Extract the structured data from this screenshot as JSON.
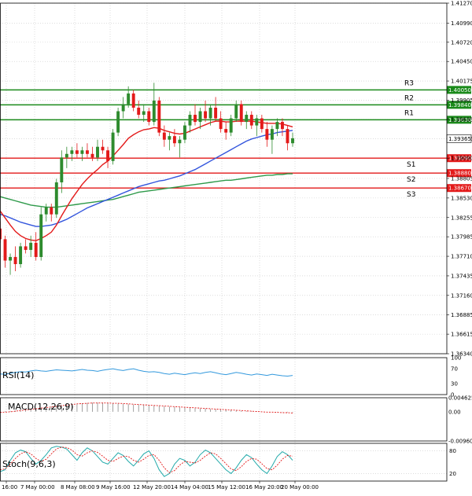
{
  "chart_data": {
    "type": "candlestick",
    "instrument_note": "",
    "colors": {
      "bull": "#2e8b2e",
      "bear": "#e31a1a",
      "ma_fast": "#e31a1a",
      "ma_mid": "#3355dd",
      "ma_slow": "#2e9a4a",
      "resistance": "#1a8a1a",
      "support": "#e31a1a",
      "grid": "#c8c8c8",
      "rsi": "#3399dd",
      "macd_hist": "#888888",
      "macd_signal": "#e31a1a",
      "stoch_k": "#22aaaa",
      "stoch_d": "#e31a1a"
    },
    "price_axis": {
      "min": 1.3634,
      "max": 1.4127,
      "ticks": [
        "1.41270",
        "1.40990",
        "1.40720",
        "1.40450",
        "1.40175",
        "1.39905",
        "1.39635",
        "1.39365",
        "1.39090",
        "1.38805",
        "1.38530",
        "1.38255",
        "1.37985",
        "1.37710",
        "1.37435",
        "1.37160",
        "1.36885",
        "1.36615",
        "1.36340"
      ]
    },
    "current_price": {
      "value": 1.39365,
      "label": "1.39365"
    },
    "levels": [
      {
        "name": "R3",
        "value": 1.4005,
        "label": "1.40050",
        "kind": "resistance"
      },
      {
        "name": "R2",
        "value": 1.3984,
        "label": "1.39840",
        "kind": "resistance"
      },
      {
        "name": "R1",
        "value": 1.3963,
        "label": "1.39630",
        "kind": "resistance"
      },
      {
        "name": "S1",
        "value": 1.3909,
        "label": "1.39090",
        "kind": "support"
      },
      {
        "name": "S2",
        "value": 1.3888,
        "label": "1.38880",
        "kind": "support"
      },
      {
        "name": "S3",
        "value": 1.3867,
        "label": "1.38670",
        "kind": "support"
      }
    ],
    "x_labels": [
      "16:00",
      "7 May 00:00",
      "8 May 08:00",
      "9 May 16:00",
      "12 May 20:00",
      "14 May 04:00",
      "15 May 12:00",
      "16 May 20:00",
      "20 May 00:00"
    ],
    "candles": [
      [
        1.381,
        1.382,
        1.379,
        1.3795
      ],
      [
        1.3795,
        1.38,
        1.3755,
        1.3765
      ],
      [
        1.3765,
        1.3775,
        1.3745,
        1.377
      ],
      [
        1.377,
        1.3785,
        1.375,
        1.376
      ],
      [
        1.376,
        1.379,
        1.3755,
        1.3785
      ],
      [
        1.3785,
        1.3795,
        1.3775,
        1.378
      ],
      [
        1.378,
        1.38,
        1.377,
        1.379
      ],
      [
        1.379,
        1.3805,
        1.3765,
        1.377
      ],
      [
        1.377,
        1.384,
        1.3765,
        1.383
      ],
      [
        1.383,
        1.3845,
        1.382,
        1.384
      ],
      [
        1.384,
        1.3845,
        1.382,
        1.383
      ],
      [
        1.383,
        1.388,
        1.3825,
        1.3875
      ],
      [
        1.3875,
        1.392,
        1.386,
        1.391
      ],
      [
        1.391,
        1.3925,
        1.3895,
        1.3915
      ],
      [
        1.3915,
        1.3925,
        1.3905,
        1.392
      ],
      [
        1.392,
        1.393,
        1.391,
        1.3915
      ],
      [
        1.3915,
        1.3925,
        1.3905,
        1.392
      ],
      [
        1.392,
        1.393,
        1.391,
        1.3915
      ],
      [
        1.3915,
        1.3925,
        1.3905,
        1.391
      ],
      [
        1.391,
        1.3935,
        1.3905,
        1.3925
      ],
      [
        1.3925,
        1.3935,
        1.3915,
        1.392
      ],
      [
        1.392,
        1.3925,
        1.3895,
        1.3905
      ],
      [
        1.3905,
        1.395,
        1.39,
        1.3945
      ],
      [
        1.3945,
        1.398,
        1.394,
        1.3975
      ],
      [
        1.3975,
        1.3995,
        1.3965,
        1.3985
      ],
      [
        1.3985,
        1.401,
        1.398,
        1.4
      ],
      [
        1.4,
        1.4005,
        1.3975,
        1.398
      ],
      [
        1.398,
        1.399,
        1.3965,
        1.397
      ],
      [
        1.397,
        1.3985,
        1.396,
        1.3975
      ],
      [
        1.3975,
        1.398,
        1.3955,
        1.396
      ],
      [
        1.396,
        1.4015,
        1.3955,
        1.399
      ],
      [
        1.399,
        1.3995,
        1.394,
        1.3945
      ],
      [
        1.3945,
        1.3955,
        1.3925,
        1.3935
      ],
      [
        1.3935,
        1.3945,
        1.392,
        1.394
      ],
      [
        1.394,
        1.395,
        1.3925,
        1.393
      ],
      [
        1.393,
        1.394,
        1.391,
        1.3935
      ],
      [
        1.3935,
        1.396,
        1.393,
        1.3955
      ],
      [
        1.3955,
        1.3975,
        1.3945,
        1.397
      ],
      [
        1.397,
        1.3985,
        1.3955,
        1.396
      ],
      [
        1.396,
        1.398,
        1.395,
        1.3975
      ],
      [
        1.3975,
        1.399,
        1.396,
        1.3965
      ],
      [
        1.3965,
        1.3985,
        1.3955,
        1.398
      ],
      [
        1.398,
        1.3995,
        1.396,
        1.3965
      ],
      [
        1.3965,
        1.3975,
        1.3945,
        1.395
      ],
      [
        1.395,
        1.396,
        1.3935,
        1.3945
      ],
      [
        1.3945,
        1.397,
        1.394,
        1.3965
      ],
      [
        1.3965,
        1.399,
        1.396,
        1.3985
      ],
      [
        1.3985,
        1.399,
        1.3955,
        1.396
      ],
      [
        1.396,
        1.3975,
        1.395,
        1.397
      ],
      [
        1.397,
        1.3975,
        1.395,
        1.3955
      ],
      [
        1.3955,
        1.397,
        1.394,
        1.3965
      ],
      [
        1.3965,
        1.397,
        1.3945,
        1.395
      ],
      [
        1.395,
        1.396,
        1.3925,
        1.3935
      ],
      [
        1.3935,
        1.3955,
        1.3915,
        1.395
      ],
      [
        1.395,
        1.3965,
        1.394,
        1.396
      ],
      [
        1.396,
        1.3965,
        1.394,
        1.395
      ],
      [
        1.395,
        1.3955,
        1.392,
        1.393
      ],
      [
        1.393,
        1.3945,
        1.3925,
        1.3937
      ]
    ],
    "ma_fast": [
      1.3835,
      1.3825,
      1.3815,
      1.3806,
      1.38,
      1.3796,
      1.3794,
      1.3793,
      1.3796,
      1.38,
      1.3805,
      1.3815,
      1.3828,
      1.384,
      1.3852,
      1.3862,
      1.3872,
      1.388,
      1.3887,
      1.3893,
      1.39,
      1.3905,
      1.3912,
      1.392,
      1.3928,
      1.3937,
      1.3942,
      1.3946,
      1.3949,
      1.395,
      1.3952,
      1.3951,
      1.3948,
      1.3946,
      1.3944,
      1.3943,
      1.3944,
      1.3947,
      1.395,
      1.3953,
      1.3956,
      1.3959,
      1.3961,
      1.3961,
      1.396,
      1.396,
      1.3961,
      1.3961,
      1.3961,
      1.3961,
      1.396,
      1.3959,
      1.3958,
      1.3958,
      1.3958,
      1.3957,
      1.3955,
      1.3953
    ],
    "ma_mid": [
      1.383,
      1.3828,
      1.3825,
      1.3822,
      1.3819,
      1.3817,
      1.3815,
      1.3813,
      1.3813,
      1.3814,
      1.3815,
      1.3817,
      1.382,
      1.3823,
      1.3827,
      1.3831,
      1.3835,
      1.3839,
      1.3842,
      1.3845,
      1.3848,
      1.3851,
      1.3854,
      1.3857,
      1.386,
      1.3863,
      1.3866,
      1.3869,
      1.3871,
      1.3873,
      1.3875,
      1.3877,
      1.3878,
      1.388,
      1.3882,
      1.3884,
      1.3887,
      1.389,
      1.3893,
      1.3897,
      1.3901,
      1.3905,
      1.3909,
      1.3913,
      1.3917,
      1.3921,
      1.3925,
      1.3929,
      1.3933,
      1.3936,
      1.3938,
      1.394,
      1.3942,
      1.3943,
      1.3945,
      1.3946,
      1.3947,
      1.3948
    ],
    "ma_slow": [
      1.3855,
      1.3853,
      1.3851,
      1.3849,
      1.3847,
      1.3845,
      1.3843,
      1.3842,
      1.3841,
      1.384,
      1.384,
      1.384,
      1.3841,
      1.3842,
      1.3843,
      1.3844,
      1.3845,
      1.3846,
      1.3847,
      1.3848,
      1.3849,
      1.385,
      1.3851,
      1.3853,
      1.3855,
      1.3857,
      1.3859,
      1.3861,
      1.3862,
      1.3863,
      1.3864,
      1.3865,
      1.3866,
      1.3867,
      1.3868,
      1.3869,
      1.387,
      1.3871,
      1.3872,
      1.3873,
      1.3874,
      1.3875,
      1.3876,
      1.3877,
      1.3878,
      1.3878,
      1.3879,
      1.388,
      1.3881,
      1.3882,
      1.3883,
      1.3884,
      1.3885,
      1.3885,
      1.3886,
      1.3886,
      1.3887,
      1.3887
    ],
    "rsi": {
      "title": "RSI(14)",
      "ticks": [
        "100",
        "70",
        "30",
        "0"
      ],
      "values": [
        56,
        55,
        58,
        60,
        62,
        61,
        64,
        66,
        64,
        63,
        65,
        67,
        66,
        65,
        64,
        66,
        68,
        66,
        65,
        63,
        66,
        68,
        70,
        67,
        65,
        68,
        70,
        66,
        63,
        61,
        62,
        60,
        57,
        55,
        58,
        56,
        54,
        57,
        59,
        57,
        60,
        62,
        59,
        56,
        54,
        57,
        60,
        58,
        55,
        53,
        56,
        54,
        52,
        55,
        53,
        51,
        50,
        52
      ]
    },
    "macd": {
      "title": "MACD(12,26,9)",
      "ticks": [
        "0.004625",
        "0.00",
        "-0.009608"
      ],
      "histogram": [
        0.0001,
        0.0002,
        0.0003,
        0.0004,
        0.0006,
        0.0008,
        0.001,
        0.0012,
        0.0014,
        0.0016,
        0.0018,
        0.002,
        0.0022,
        0.0024,
        0.0026,
        0.0027,
        0.0028,
        0.0029,
        0.003,
        0.003,
        0.003,
        0.0029,
        0.0028,
        0.0027,
        0.0026,
        0.0025,
        0.0024,
        0.0023,
        0.0022,
        0.0021,
        0.002,
        0.0019,
        0.0018,
        0.0017,
        0.0016,
        0.0015,
        0.0014,
        0.0013,
        0.0012,
        0.0011,
        0.001,
        0.0009,
        0.0008,
        0.0007,
        0.0006,
        0.0005,
        0.0004,
        0.0003,
        0.0002,
        0.0002,
        0.0001,
        0.0001,
        0.0,
        0.0,
        -0.0001,
        -0.0001,
        -0.0002,
        -0.0002
      ],
      "signal": [
        -0.0002,
        -0.0001,
        0.0,
        0.0002,
        0.0004,
        0.0006,
        0.0008,
        0.001,
        0.0012,
        0.0014,
        0.0016,
        0.0018,
        0.002,
        0.0022,
        0.0024,
        0.0026,
        0.0027,
        0.0028,
        0.0029,
        0.0029,
        0.0029,
        0.0029,
        0.0028,
        0.0028,
        0.0027,
        0.0026,
        0.0025,
        0.0024,
        0.0023,
        0.0022,
        0.0021,
        0.002,
        0.0019,
        0.0018,
        0.0017,
        0.0016,
        0.0015,
        0.0014,
        0.0013,
        0.0012,
        0.0011,
        0.001,
        0.0009,
        0.0008,
        0.0007,
        0.0006,
        0.0005,
        0.0004,
        0.0003,
        0.0002,
        0.0001,
        0.0,
        -0.0001,
        -0.0001,
        -0.0002,
        -0.0003,
        -0.0003,
        -0.0004
      ]
    },
    "stoch": {
      "title": "Stoch(9,6,3)",
      "ticks": [
        "80",
        "20"
      ],
      "k": [
        25,
        30,
        55,
        75,
        82,
        78,
        60,
        45,
        55,
        70,
        88,
        92,
        90,
        85,
        70,
        55,
        75,
        88,
        80,
        65,
        50,
        45,
        60,
        75,
        68,
        52,
        40,
        55,
        72,
        80,
        60,
        30,
        12,
        20,
        45,
        60,
        55,
        40,
        50,
        70,
        82,
        75,
        60,
        45,
        30,
        20,
        35,
        55,
        70,
        62,
        45,
        30,
        20,
        40,
        65,
        78,
        70,
        55
      ],
      "d": [
        30,
        32,
        45,
        60,
        72,
        78,
        72,
        60,
        52,
        58,
        72,
        85,
        90,
        89,
        82,
        70,
        66,
        75,
        80,
        76,
        66,
        55,
        52,
        60,
        66,
        65,
        55,
        50,
        58,
        68,
        70,
        55,
        35,
        22,
        28,
        42,
        52,
        50,
        48,
        55,
        66,
        75,
        72,
        60,
        46,
        32,
        28,
        38,
        52,
        60,
        58,
        46,
        33,
        30,
        42,
        58,
        68,
        66
      ]
    }
  }
}
